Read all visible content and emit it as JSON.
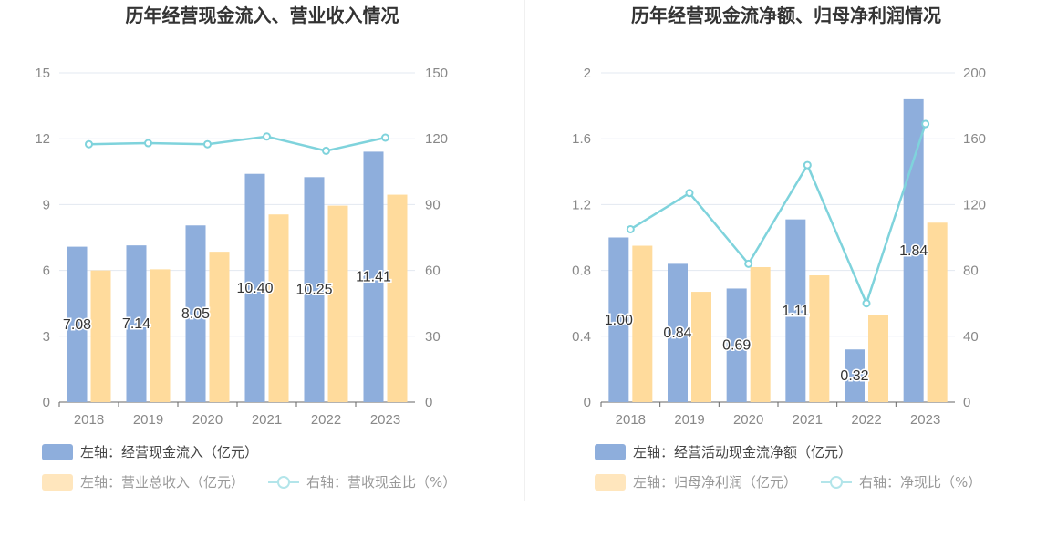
{
  "colors": {
    "bar_primary": "#8eaedc",
    "bar_secondary": "#ffdb9c",
    "line": "#7fd3dc",
    "axis_text": "#888888",
    "grid": "#e3e8f1",
    "legend_text_dark": "#444444",
    "legend_text_light": "#999999"
  },
  "chart_data": [
    {
      "type": "bar",
      "title": "历年经营现金流入、营业收入情况",
      "categories": [
        "2018",
        "2019",
        "2020",
        "2021",
        "2022",
        "2023"
      ],
      "y_left": {
        "ticks": [
          "0",
          "3",
          "6",
          "9",
          "12",
          "15"
        ],
        "ylim": [
          0,
          15
        ]
      },
      "y_right": {
        "ticks": [
          "0",
          "30",
          "60",
          "90",
          "120",
          "150"
        ],
        "ylim": [
          0,
          150
        ]
      },
      "grid": true,
      "legend_position": "bottom-left",
      "series": [
        {
          "name": "左轴：经营现金流入（亿元）",
          "type": "bar",
          "axis": "left",
          "color": "#8eaedc",
          "values": [
            7.08,
            7.14,
            8.05,
            10.4,
            10.25,
            11.41
          ],
          "labels": [
            "7.08",
            "7.14",
            "8.05",
            "10.40",
            "10.25",
            "11.41"
          ]
        },
        {
          "name": "左轴：营业总收入（亿元）",
          "type": "bar",
          "axis": "left",
          "color": "#ffdb9c",
          "values": [
            6.0,
            6.05,
            6.85,
            8.55,
            8.95,
            9.45
          ]
        },
        {
          "name": "右轴：营收现金比（%）",
          "type": "line",
          "axis": "right",
          "color": "#7fd3dc",
          "values": [
            117.5,
            118,
            117.5,
            121,
            114.5,
            120.5
          ]
        }
      ]
    },
    {
      "type": "bar",
      "title": "历年经营现金流净额、归母净利润情况",
      "categories": [
        "2018",
        "2019",
        "2020",
        "2021",
        "2022",
        "2023"
      ],
      "y_left": {
        "ticks": [
          "0",
          "0.4",
          "0.8",
          "1.2",
          "1.6",
          "2"
        ],
        "ylim": [
          0,
          2
        ]
      },
      "y_right": {
        "ticks": [
          "0",
          "40",
          "80",
          "120",
          "160",
          "200"
        ],
        "ylim": [
          0,
          200
        ]
      },
      "grid": true,
      "legend_position": "bottom-left",
      "series": [
        {
          "name": "左轴：经营活动现金流净额（亿元）",
          "type": "bar",
          "axis": "left",
          "color": "#8eaedc",
          "values": [
            1.0,
            0.84,
            0.69,
            1.11,
            0.32,
            1.84
          ],
          "labels": [
            "1.00",
            "0.84",
            "0.69",
            "1.11",
            "0.32",
            "1.84"
          ]
        },
        {
          "name": "左轴：归母净利润（亿元）",
          "type": "bar",
          "axis": "left",
          "color": "#ffdb9c",
          "values": [
            0.95,
            0.67,
            0.82,
            0.77,
            0.53,
            1.09
          ]
        },
        {
          "name": "右轴：净现比（%）",
          "type": "line",
          "axis": "right",
          "color": "#7fd3dc",
          "values": [
            105,
            127,
            84,
            144,
            60,
            169
          ]
        }
      ]
    }
  ]
}
